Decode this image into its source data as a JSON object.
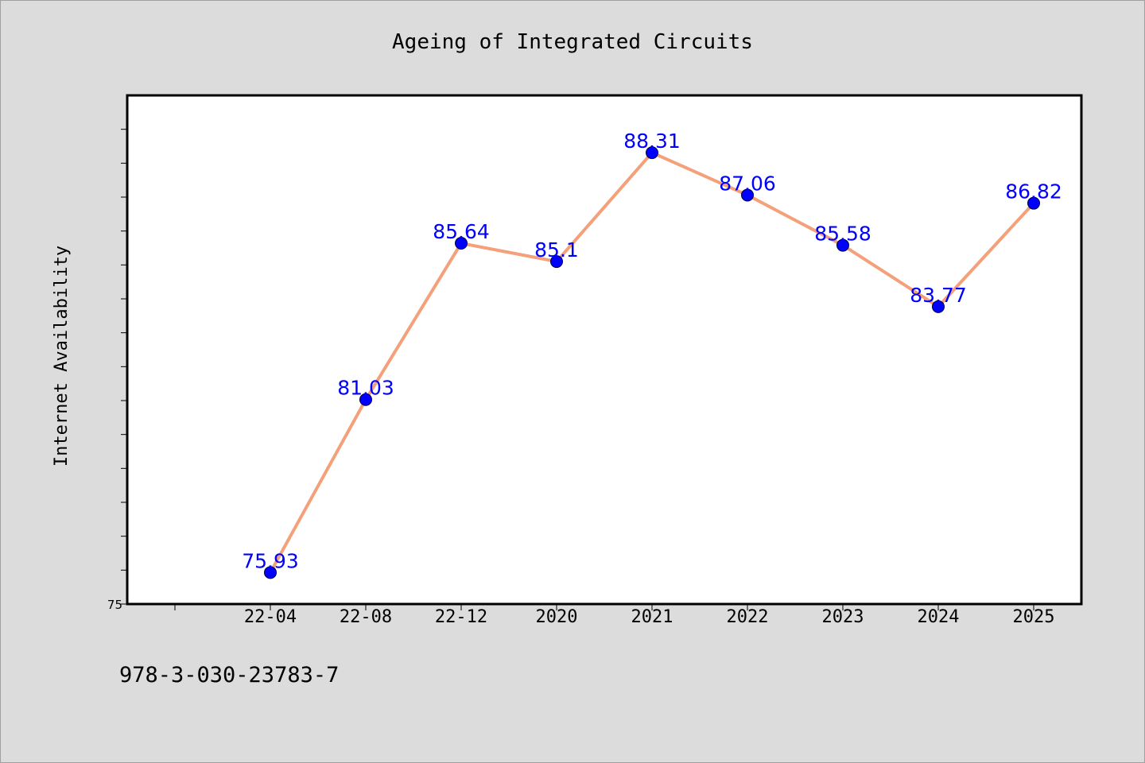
{
  "footer": {
    "isbn": "978-3-030-23783-7"
  },
  "colors": {
    "background": "#dcdcdc",
    "plot_background": "#ffffff",
    "line": "#f4a07a",
    "marker": "#0000ff",
    "data_label": "#0000ff"
  },
  "chart_data": {
    "type": "line",
    "title": "Ageing of Integrated Circuits",
    "xlabel": "",
    "ylabel": "Internet Availability",
    "categories": [
      "22-04",
      "22-08",
      "22-12",
      "2020",
      "2021",
      "2022",
      "2023",
      "2024",
      "2025"
    ],
    "series": [
      {
        "values": [
          75.93,
          81.03,
          85.64,
          85.1,
          88.31,
          87.06,
          85.58,
          83.77,
          86.82
        ],
        "labels": [
          "75.93",
          "81.03",
          "85.64",
          "85.1",
          "88.31",
          "87.06",
          "85.58",
          "83.77",
          "86.82"
        ]
      }
    ],
    "ylim": [
      75,
      90
    ],
    "ytick_minor_step": 1,
    "ytick_labels": [
      {
        "value": 75,
        "label": "75"
      }
    ],
    "grid": false,
    "legend": "none"
  }
}
